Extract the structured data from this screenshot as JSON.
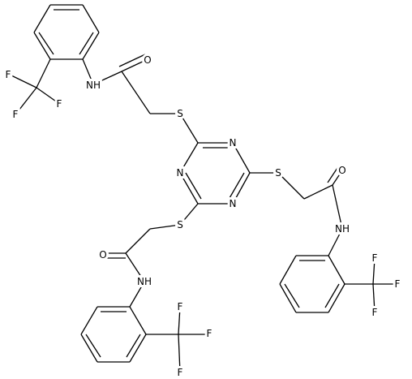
{
  "atoms": [
    "F",
    "F",
    "F",
    "NH",
    "O",
    "S",
    "N",
    "N",
    "N",
    "S",
    "O",
    "NH",
    "F",
    "F",
    "F",
    "S",
    "O",
    "NH",
    "F",
    "F",
    "F"
  ]
}
